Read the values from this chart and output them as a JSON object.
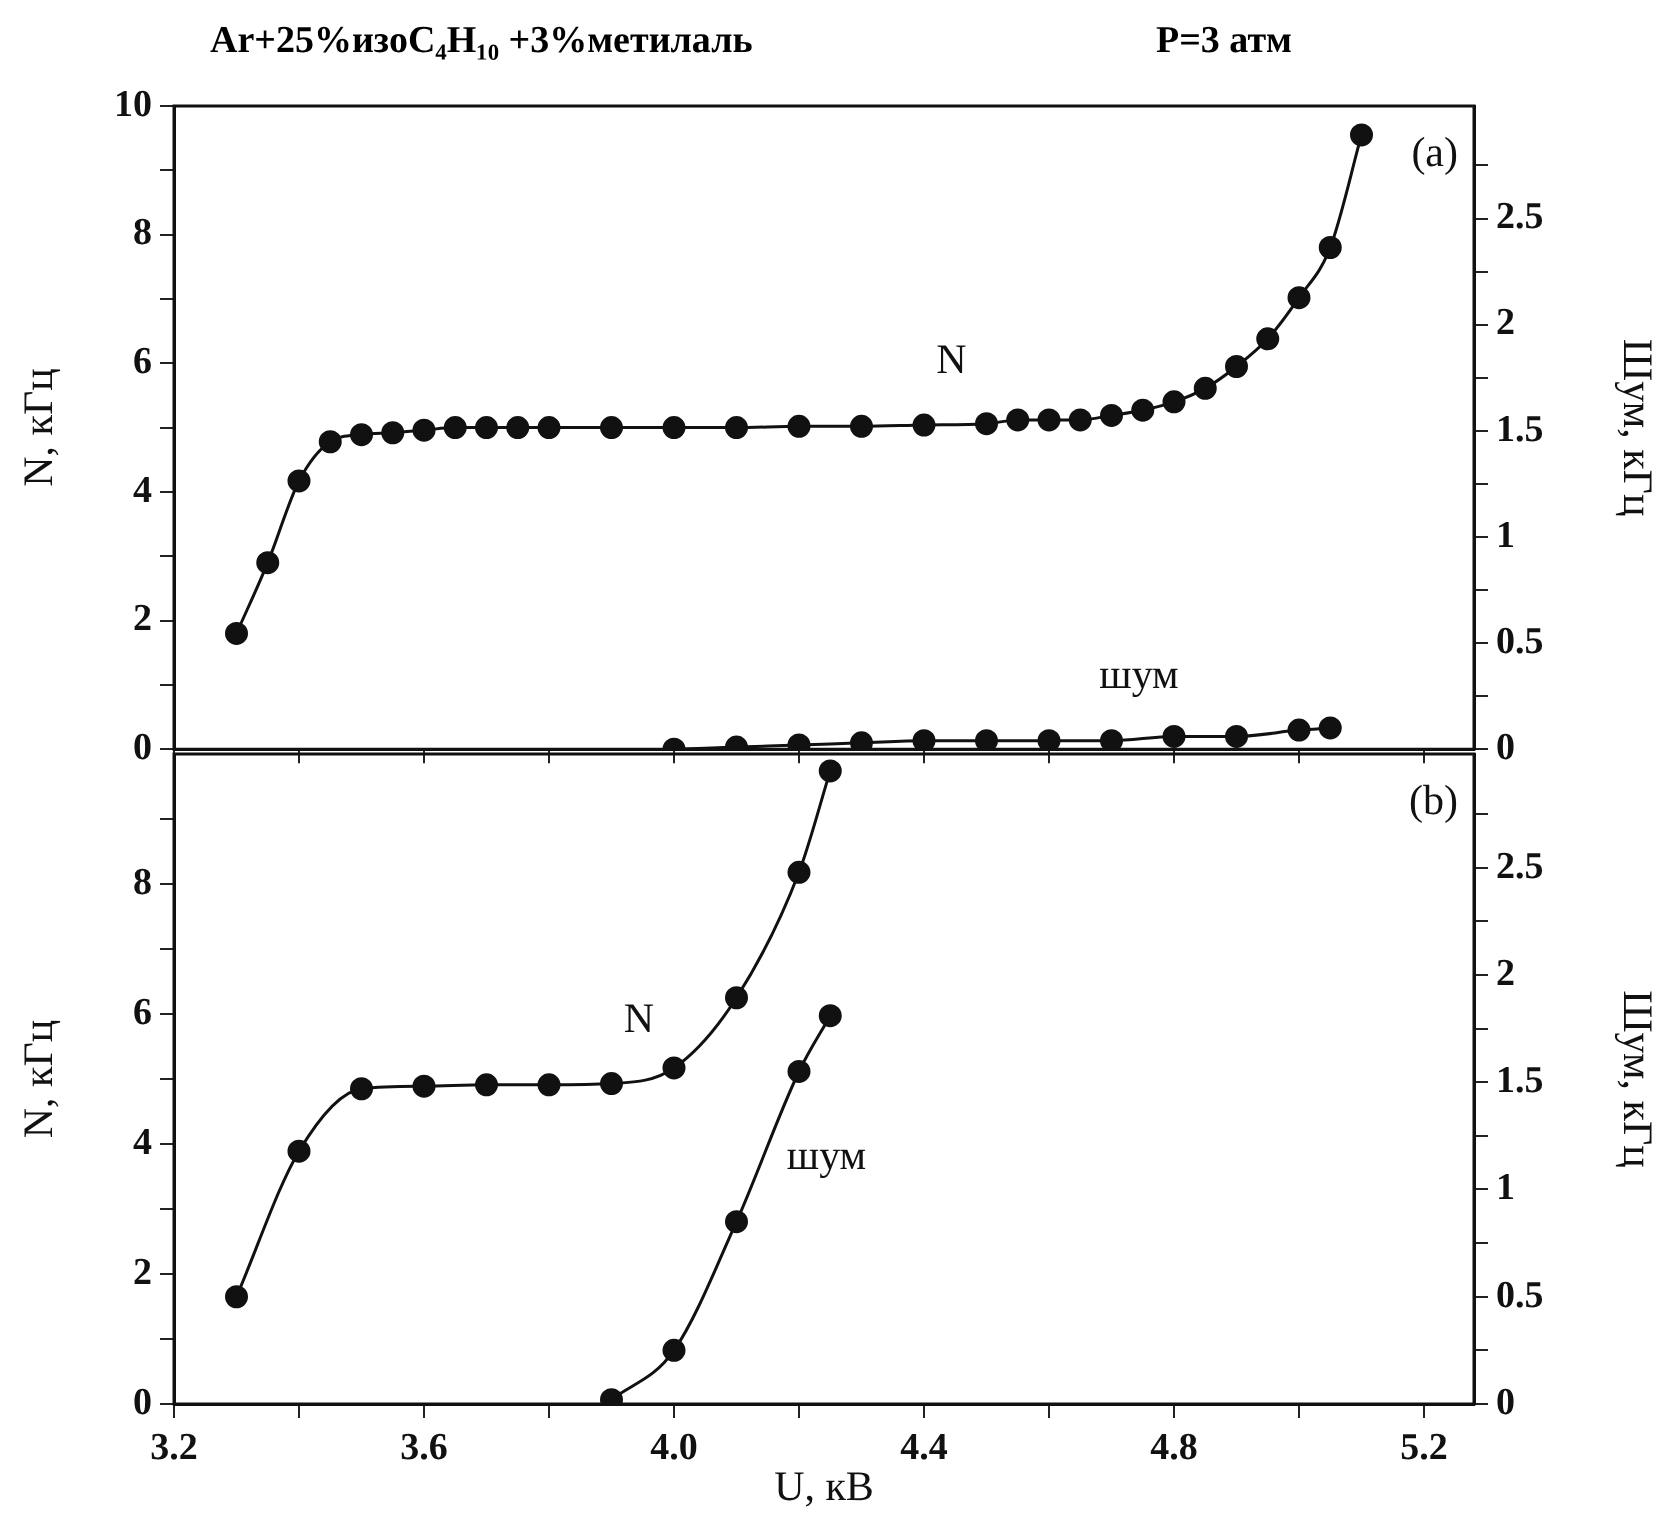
{
  "chart_data": [
    {
      "type": "line",
      "title": "Ar+25%изоC₄H₁₀ +3%метилаль",
      "subtitle": "P=3 атм",
      "ylabel": "N, кГц",
      "y2label": "Шум, кГц",
      "xlim": [
        3.2,
        5.28
      ],
      "xticks": [
        {
          "value": 3.2,
          "label": null
        },
        {
          "value": 3.4,
          "label": null
        },
        {
          "value": 3.6,
          "label": null
        },
        {
          "value": 3.8,
          "label": null
        },
        {
          "value": 4,
          "label": null
        },
        {
          "value": 4.2,
          "label": null
        },
        {
          "value": 4.4,
          "label": null
        },
        {
          "value": 4.6,
          "label": null
        },
        {
          "value": 4.8,
          "label": null
        },
        {
          "value": 5,
          "label": null
        },
        {
          "value": 5.2,
          "label": null
        }
      ],
      "ylim": [
        0,
        10
      ],
      "yticks": [
        0,
        {
          "value": 1,
          "label": null
        },
        2,
        {
          "value": 3,
          "label": null
        },
        4,
        {
          "value": 5,
          "label": null
        },
        6,
        {
          "value": 7,
          "label": null
        },
        8,
        {
          "value": 9,
          "label": null
        },
        10
      ],
      "y2lim": [
        0,
        3.03
      ],
      "y2ticks": [
        0,
        {
          "value": 0.25,
          "label": null
        },
        0.5,
        {
          "value": 0.75,
          "label": null
        },
        1,
        {
          "value": 1.25,
          "label": null
        },
        1.5,
        {
          "value": 1.75,
          "label": null
        },
        2,
        {
          "value": 2.25,
          "label": null
        },
        2.5,
        {
          "value": 2.75,
          "label": null
        }
      ],
      "tick_labels": "y",
      "grid": false,
      "legend": false,
      "marker": "circle",
      "line_style": "solid",
      "series": [
        {
          "name": "N",
          "color": "#111111",
          "x": [
            3.3,
            3.35,
            3.4,
            3.45,
            3.5,
            3.55,
            3.6,
            3.65,
            3.7,
            3.75,
            3.8,
            3.9,
            4.0,
            4.1,
            4.2,
            4.3,
            4.4,
            4.5,
            4.55,
            4.6,
            4.65,
            4.7,
            4.75,
            4.8,
            4.85,
            4.9,
            4.95,
            5.0,
            5.05,
            5.1
          ],
          "values": [
            1.8,
            2.9,
            4.17,
            4.78,
            4.89,
            4.92,
            4.96,
            5.0,
            5.0,
            5.0,
            5.0,
            5.0,
            5.0,
            5.0,
            5.02,
            5.02,
            5.04,
            5.06,
            5.12,
            5.12,
            5.12,
            5.19,
            5.27,
            5.4,
            5.61,
            5.95,
            6.38,
            7.02,
            7.8,
            9.55
          ]
        },
        {
          "name": "шум",
          "color": "#111111",
          "axis": "y2",
          "x": [
            4.0,
            4.1,
            4.2,
            4.3,
            4.4,
            4.5,
            4.6,
            4.7,
            4.8,
            4.9,
            5.0,
            5.05
          ],
          "values": [
            0.0,
            0.01,
            0.02,
            0.03,
            0.04,
            0.04,
            0.04,
            0.04,
            0.06,
            0.06,
            0.09,
            0.1
          ]
        }
      ],
      "annotations": [
        "(a)"
      ]
    },
    {
      "type": "line",
      "xlabel": "U, кВ",
      "ylabel": "N, кГц",
      "y2label": "Шум, кГц",
      "xlim": [
        3.2,
        5.28
      ],
      "xticks": [
        3.2,
        {
          "value": 3.4,
          "label": null
        },
        3.6,
        {
          "value": 3.8,
          "label": null
        },
        {
          "value": 4,
          "label": "4.0"
        },
        {
          "value": 4.2,
          "label": null
        },
        4.4,
        {
          "value": 4.6,
          "label": null
        },
        4.8,
        {
          "value": 5,
          "label": null
        },
        5.2
      ],
      "ylim": [
        0,
        10
      ],
      "yticks": [
        0,
        {
          "value": 1,
          "label": null
        },
        2,
        {
          "value": 3,
          "label": null
        },
        4,
        {
          "value": 5,
          "label": null
        },
        6,
        {
          "value": 7,
          "label": null
        },
        8,
        {
          "value": 9,
          "label": null
        }
      ],
      "y2lim": [
        0,
        3.03
      ],
      "y2ticks": [
        0,
        {
          "value": 0.25,
          "label": null
        },
        0.5,
        {
          "value": 0.75,
          "label": null
        },
        1,
        {
          "value": 1.25,
          "label": null
        },
        1.5,
        {
          "value": 1.75,
          "label": null
        },
        2,
        {
          "value": 2.25,
          "label": null
        },
        2.5,
        {
          "value": 2.75,
          "label": null
        }
      ],
      "grid": false,
      "legend": false,
      "marker": "circle",
      "line_style": "solid",
      "series": [
        {
          "name": "N",
          "color": "#111111",
          "x": [
            3.3,
            3.4,
            3.5,
            3.6,
            3.7,
            3.8,
            3.9,
            4.0,
            4.1,
            4.2,
            4.25
          ],
          "values": [
            1.65,
            3.89,
            4.85,
            4.89,
            4.91,
            4.91,
            4.93,
            5.17,
            6.25,
            8.18,
            9.74
          ]
        },
        {
          "name": "шум",
          "color": "#111111",
          "axis": "y2",
          "x": [
            3.9,
            4.0,
            4.1,
            4.2,
            4.25
          ],
          "values": [
            0.02,
            0.25,
            0.85,
            1.55,
            1.81
          ]
        }
      ],
      "annotations": [
        "(b)"
      ]
    }
  ]
}
